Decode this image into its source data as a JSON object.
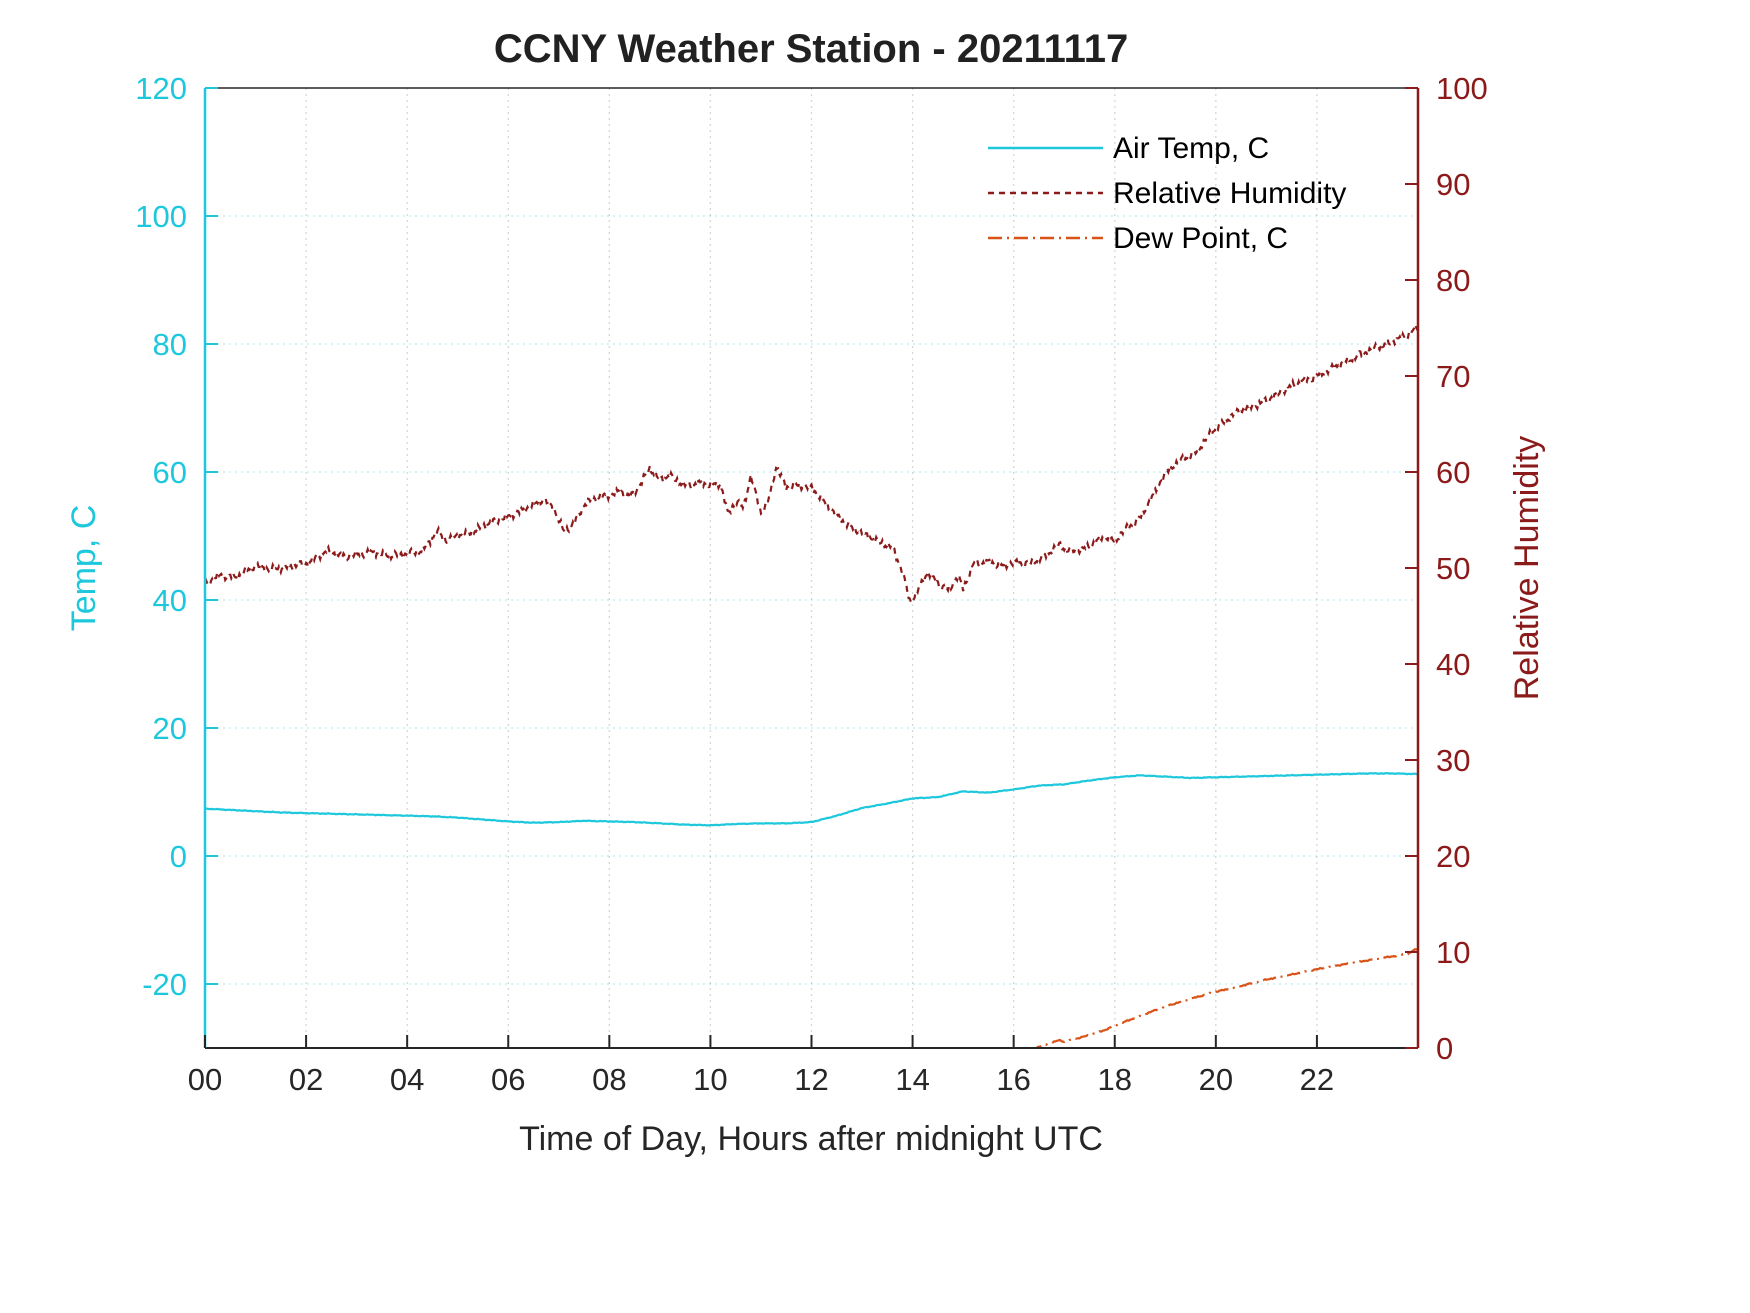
{
  "title": "CCNY Weather Station - 20211117",
  "chart_data": {
    "type": "line",
    "title": "CCNY Weather Station - 20211117",
    "xlabel": "Time of Day, Hours after midnight UTC",
    "xlim": [
      0,
      24
    ],
    "grid": true,
    "x_ticks": {
      "values": [
        0,
        2,
        4,
        6,
        8,
        10,
        12,
        14,
        16,
        18,
        20,
        22
      ],
      "labels": [
        "00",
        "02",
        "04",
        "06",
        "08",
        "10",
        "12",
        "14",
        "16",
        "18",
        "20",
        "22"
      ]
    },
    "left_axis": {
      "label": "Temp, C",
      "color": "#1EC8DC",
      "lim": [
        -30,
        120
      ],
      "ticks": [
        -20,
        0,
        20,
        40,
        60,
        80,
        100,
        120
      ]
    },
    "right_axis": {
      "label": "Relative Humidity",
      "color": "#8B1A1A",
      "lim": [
        0,
        100
      ],
      "ticks": [
        0,
        10,
        20,
        30,
        40,
        50,
        60,
        70,
        80,
        90,
        100
      ]
    },
    "legend": {
      "position": "upper-right",
      "entries": [
        "Air Temp, C",
        "Relative Humidity",
        "Dew Point, C"
      ]
    },
    "series": [
      {
        "name": "Air Temp, C",
        "axis": "left",
        "color": "#1EC8DC",
        "line_style": "solid",
        "noise": 0.07,
        "x": [
          0,
          0.5,
          1,
          1.5,
          2,
          2.5,
          3,
          3.5,
          4,
          4.5,
          5,
          5.5,
          6,
          6.5,
          7,
          7.5,
          8,
          8.5,
          9,
          9.5,
          10,
          10.5,
          11,
          11.5,
          12,
          12.5,
          13,
          13.5,
          14,
          14.5,
          15,
          15.5,
          16,
          16.5,
          17,
          17.5,
          18,
          18.5,
          19,
          19.5,
          20,
          20.5,
          21,
          21.5,
          22,
          22.5,
          23,
          23.5,
          24
        ],
        "y": [
          7.4,
          7.2,
          7.0,
          6.8,
          6.7,
          6.6,
          6.5,
          6.4,
          6.3,
          6.2,
          6.0,
          5.7,
          5.4,
          5.2,
          5.3,
          5.5,
          5.4,
          5.3,
          5.1,
          4.9,
          4.8,
          5.0,
          5.1,
          5.1,
          5.3,
          6.3,
          7.5,
          8.2,
          9.0,
          9.2,
          10.1,
          9.9,
          10.4,
          11.0,
          11.2,
          11.8,
          12.3,
          12.6,
          12.4,
          12.2,
          12.3,
          12.4,
          12.5,
          12.6,
          12.7,
          12.8,
          12.9,
          12.9,
          12.8
        ]
      },
      {
        "name": "Relative Humidity",
        "axis": "right",
        "color": "#8B1A1A",
        "line_style": "dashed",
        "noise": 0.5,
        "x": [
          0,
          0.3,
          0.6,
          1,
          1.3,
          1.7,
          2,
          2.4,
          2.7,
          3,
          3.3,
          3.7,
          4,
          4.3,
          4.6,
          4.8,
          5,
          5.3,
          5.6,
          6,
          6.3,
          6.7,
          6.9,
          7.1,
          7.3,
          7.5,
          7.8,
          8,
          8.2,
          8.4,
          8.6,
          8.8,
          9,
          9.2,
          9.5,
          9.8,
          10,
          10.2,
          10.35,
          10.5,
          10.65,
          10.8,
          11,
          11.15,
          11.3,
          11.5,
          11.7,
          12,
          12.2,
          12.5,
          12.8,
          13,
          13.3,
          13.6,
          13.8,
          13.95,
          14.1,
          14.3,
          14.5,
          14.7,
          14.9,
          15,
          15.2,
          15.5,
          15.8,
          16,
          16.3,
          16.6,
          16.9,
          17.1,
          17.4,
          17.6,
          17.8,
          18,
          18.2,
          18.5,
          18.7,
          18.9,
          19.1,
          19.3,
          19.6,
          19.8,
          20,
          20.3,
          20.5,
          20.8,
          21,
          21.3,
          21.5,
          21.8,
          22,
          22.3,
          22.6,
          23,
          23.3,
          23.6,
          23.8,
          24
        ],
        "y": [
          48.3,
          49.3,
          49.0,
          50.3,
          49.8,
          50.2,
          50.4,
          51.8,
          51.2,
          51.4,
          51.6,
          51.3,
          51.5,
          51.8,
          53.8,
          52.8,
          53.4,
          53.8,
          54.6,
          55.4,
          56.0,
          57.2,
          56.2,
          53.8,
          54.6,
          56.6,
          57.4,
          57.6,
          58.0,
          57.4,
          58.6,
          60.4,
          59.2,
          59.6,
          58.6,
          58.8,
          58.6,
          58.8,
          55.6,
          57.0,
          56.2,
          59.6,
          55.8,
          57.0,
          60.6,
          58.4,
          58.6,
          58.4,
          57.2,
          55.4,
          54.2,
          53.6,
          52.8,
          52.2,
          49.6,
          46.4,
          47.6,
          49.6,
          48.4,
          47.6,
          49.2,
          47.8,
          50.4,
          50.6,
          50.2,
          50.6,
          50.4,
          51.2,
          52.4,
          51.8,
          52.0,
          52.6,
          53.4,
          52.8,
          54.0,
          55.2,
          57.0,
          59.0,
          60.4,
          61.2,
          62.0,
          63.4,
          64.6,
          65.8,
          66.4,
          67.0,
          67.4,
          68.4,
          69.0,
          69.6,
          70.0,
          70.8,
          71.6,
          72.6,
          73.2,
          73.8,
          74.2,
          75.2
        ]
      },
      {
        "name": "Dew Point, C",
        "axis": "left",
        "color": "#D95319",
        "line_style": "dash-dot",
        "noise": 0.12,
        "x": [
          16.3,
          16.5,
          16.7,
          16.9,
          17,
          17.2,
          17.5,
          17.8,
          18,
          18.3,
          18.6,
          19,
          19.3,
          19.6,
          20,
          20.3,
          20.6,
          21,
          21.4,
          21.8,
          22,
          22.4,
          22.8,
          23,
          23.4,
          23.8,
          23.9,
          24
        ],
        "y": [
          -30.4,
          -29.8,
          -29.3,
          -28.8,
          -29.0,
          -28.6,
          -28.0,
          -27.2,
          -26.5,
          -25.6,
          -24.7,
          -23.5,
          -22.8,
          -22.1,
          -21.2,
          -20.7,
          -20.1,
          -19.3,
          -18.7,
          -18.0,
          -17.7,
          -17.1,
          -16.6,
          -16.3,
          -15.8,
          -15.3,
          -14.8,
          -14.5
        ]
      }
    ]
  }
}
